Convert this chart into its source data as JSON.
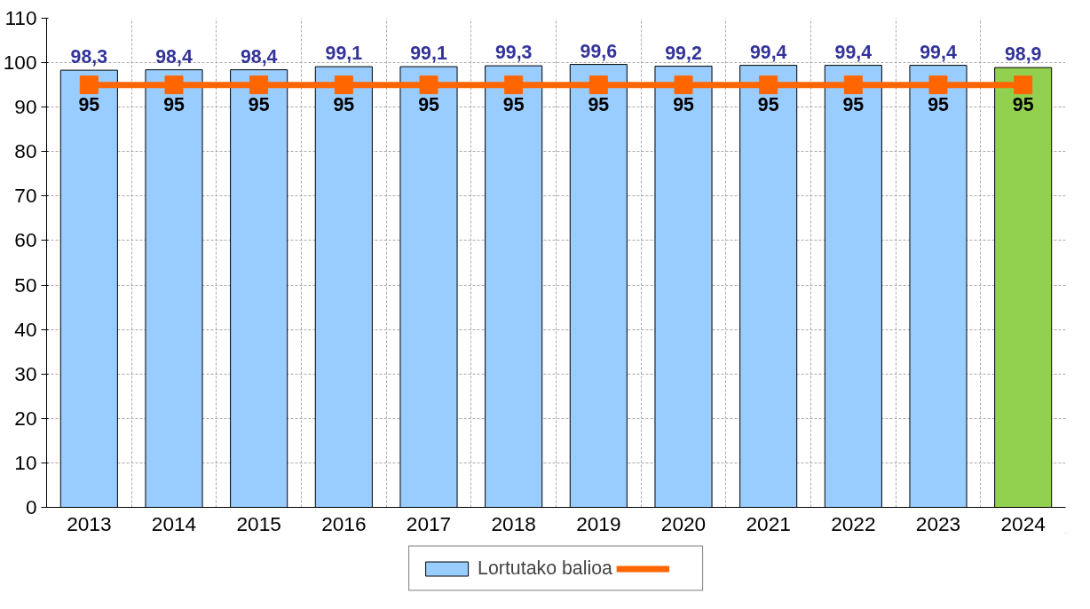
{
  "chart_data": {
    "type": "bar",
    "categories": [
      "2013",
      "2014",
      "2015",
      "2016",
      "2017",
      "2018",
      "2019",
      "2020",
      "2021",
      "2022",
      "2023",
      "2024"
    ],
    "series": [
      {
        "name": "Lortutako balioa",
        "color": "#99ccff",
        "colors": [
          "#99ccff",
          "#99ccff",
          "#99ccff",
          "#99ccff",
          "#99ccff",
          "#99ccff",
          "#99ccff",
          "#99ccff",
          "#99ccff",
          "#99ccff",
          "#99ccff",
          "#92d050"
        ],
        "values": [
          98.3,
          98.4,
          98.4,
          99.1,
          99.1,
          99.3,
          99.6,
          99.2,
          99.4,
          99.4,
          99.4,
          98.9
        ],
        "value_labels": [
          "98,3",
          "98,4",
          "98,4",
          "99,1",
          "99,1",
          "99,3",
          "99,6",
          "99,2",
          "99,4",
          "99,4",
          "99,4",
          "98,9"
        ]
      },
      {
        "type": "line",
        "color": "#ff6600",
        "marker": "square",
        "values": [
          95,
          95,
          95,
          95,
          95,
          95,
          95,
          95,
          95,
          95,
          95,
          95
        ],
        "value_labels": [
          "95",
          "95",
          "95",
          "95",
          "95",
          "95",
          "95",
          "95",
          "95",
          "95",
          "95",
          "95"
        ]
      }
    ],
    "ylim": [
      0,
      110
    ],
    "yticks": [
      0,
      10,
      20,
      30,
      40,
      50,
      60,
      70,
      80,
      90,
      100,
      110
    ],
    "grid": true,
    "legend": "bottom"
  }
}
